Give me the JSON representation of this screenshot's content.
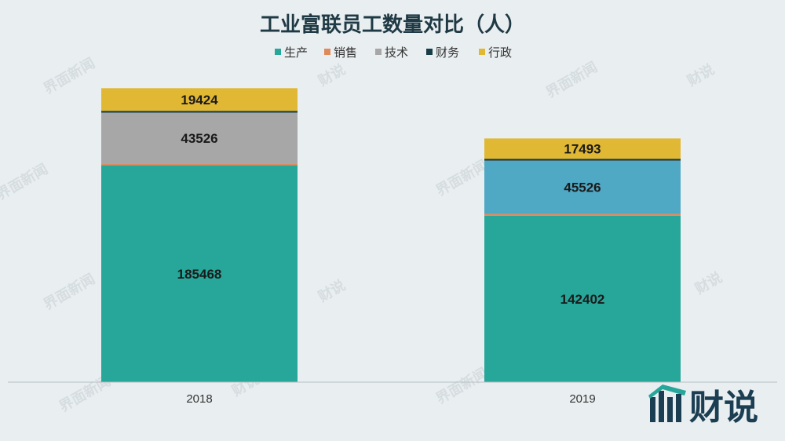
{
  "chart_data": {
    "type": "bar",
    "stacked": true,
    "title": "工业富联员工数量对比（人）",
    "categories": [
      "2018",
      "2019"
    ],
    "legend_position": "top",
    "series": [
      {
        "name": "生产",
        "values": [
          185468,
          142402
        ],
        "color": "#27a69a"
      },
      {
        "name": "销售",
        "values": [
          1500,
          1500
        ],
        "color": "#e08a5a"
      },
      {
        "name": "技术",
        "values": [
          43526,
          45526
        ],
        "color": "#a7a7a7"
      },
      {
        "name": "财务",
        "values": [
          1500,
          1500
        ],
        "color": "#183d46"
      },
      {
        "name": "行政",
        "values": [
          19424,
          17493
        ],
        "color": "#e1b834"
      }
    ],
    "data_labels": [
      [
        "185468",
        "",
        "43526",
        "",
        "19424"
      ],
      [
        "142402",
        "",
        "45526",
        "",
        "17493"
      ]
    ],
    "bar_color_overrides": {
      "2019": {
        "技术": "#4fa8c4"
      }
    },
    "ylim": [
      0,
      255000
    ],
    "grid": false,
    "y_axis_visible": false
  },
  "watermarks": {
    "small_text": "界面新闻",
    "brand_text": "财说"
  },
  "logo": {
    "text": "财说",
    "color": "#1b3e52"
  }
}
